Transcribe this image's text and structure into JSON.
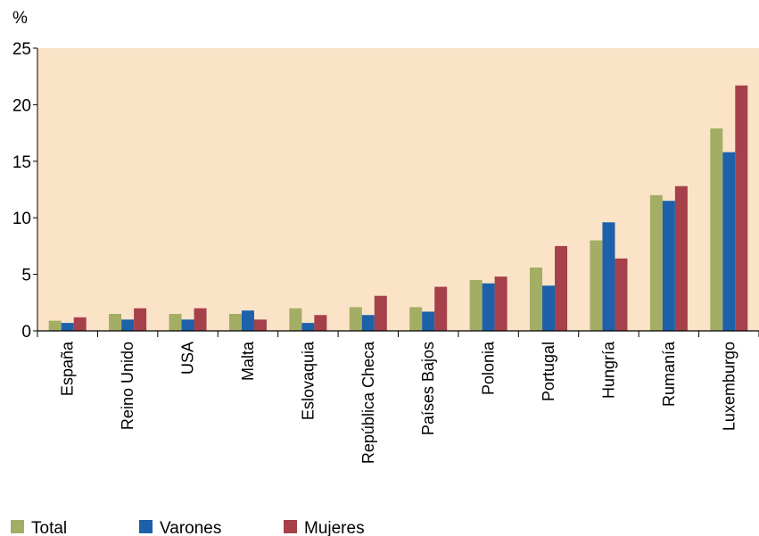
{
  "chart_data": {
    "type": "bar",
    "ylabel": "%",
    "ylim": [
      0,
      25
    ],
    "yticks": [
      0,
      5,
      10,
      15,
      20,
      25
    ],
    "grid": false,
    "legend_position": "bottom-left",
    "categories": [
      "España",
      "Reino Unido",
      "USA",
      "Malta",
      "Eslovaquia",
      "República Checa",
      "Países Bajos",
      "Polonia",
      "Portugal",
      "Hungría",
      "Rumanía",
      "Luxemburgo"
    ],
    "series": [
      {
        "name": "Total",
        "color": "#a3ae64",
        "values": [
          0.9,
          1.5,
          1.5,
          1.5,
          2.0,
          2.1,
          2.1,
          4.5,
          5.6,
          8.0,
          12.0,
          17.9
        ]
      },
      {
        "name": "Varones",
        "color": "#1c61aa",
        "values": [
          0.7,
          1.0,
          1.0,
          1.8,
          0.7,
          1.4,
          1.7,
          4.2,
          4.0,
          9.6,
          11.5,
          15.8
        ]
      },
      {
        "name": "Mujeres",
        "color": "#a6404b",
        "values": [
          1.2,
          2.0,
          2.0,
          1.0,
          1.4,
          3.1,
          3.9,
          4.8,
          7.5,
          6.4,
          12.8,
          21.7
        ]
      }
    ],
    "plot_background": "#fbe3c8"
  }
}
